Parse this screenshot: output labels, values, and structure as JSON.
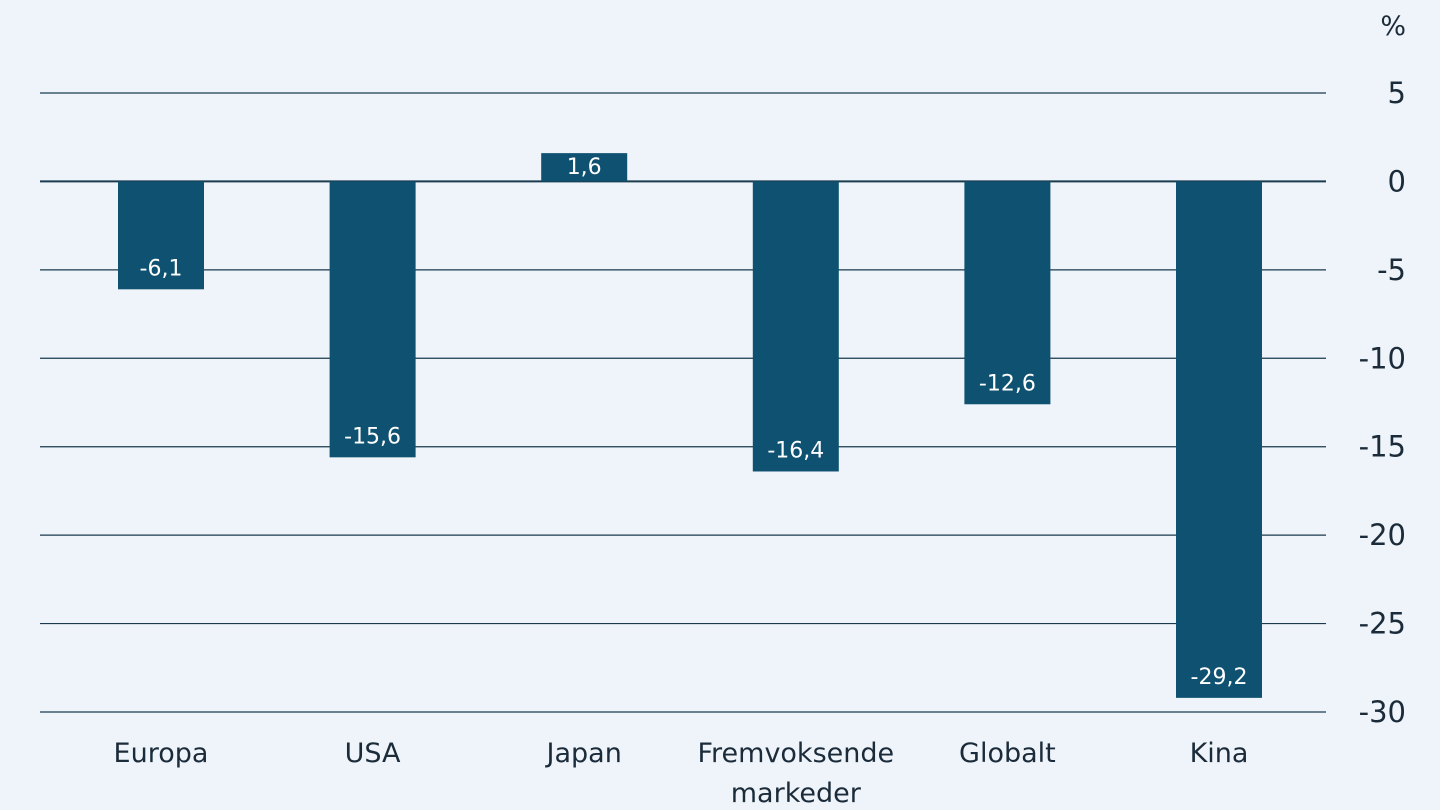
{
  "chart_data": {
    "type": "bar",
    "categories": [
      "Europa",
      "USA",
      "Japan",
      "Fremvoksende markeder",
      "Globalt",
      "Kina"
    ],
    "category_lines": [
      [
        "Europa"
      ],
      [
        "USA"
      ],
      [
        "Japan"
      ],
      [
        "Fremvoksende",
        "markeder"
      ],
      [
        "Globalt"
      ],
      [
        "Kina"
      ]
    ],
    "values": [
      -6.1,
      -15.6,
      1.6,
      -16.4,
      -12.6,
      -29.2
    ],
    "data_labels": [
      "-6,1",
      "-15,6",
      "1,6",
      "-16,4",
      "-12,6",
      "-29,2"
    ],
    "yticks": [
      5,
      0,
      -5,
      -10,
      -15,
      -20,
      -25,
      -30
    ],
    "ytick_labels": [
      "5",
      "0",
      "-5",
      "-10",
      "-15",
      "-20",
      "-25",
      "-30"
    ],
    "ylim": [
      -30,
      5
    ],
    "unit": "%",
    "y_axis_side": "right",
    "grid": true,
    "bar_color": "#0e5170",
    "grid_color": "#1a3a4e",
    "text_color": "#1b2b3a",
    "background": "#eef4f9"
  }
}
